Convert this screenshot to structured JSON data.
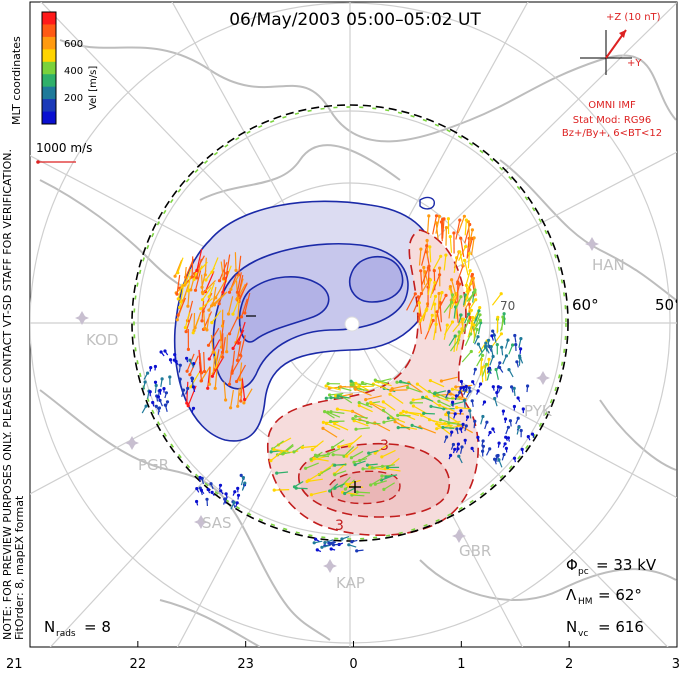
{
  "title": "06/May/2003 05:00–05:02 UT",
  "colorbar": {
    "label": "Vel [m/s]",
    "ticks": [
      "600",
      "400",
      "200"
    ],
    "colors": [
      "#ff1a1a",
      "#ff5a14",
      "#ff9a10",
      "#ffd400",
      "#7ad23c",
      "#2fb06a",
      "#1f7a9a",
      "#1b3ab8",
      "#0a10d0"
    ]
  },
  "coords_label": "MLT coordinates",
  "watermark": "NOTE: FOR PREVIEW PURPOSES ONLY. PLEASE CONTACT VT-SD STAFF FOR VERIFICATION.",
  "fit_info": "FitOrder: 8, mapEX format",
  "ref_vector": "1000 m/s",
  "imf": {
    "z_label": "+Z (10 nT)",
    "y_label": "+Y",
    "source": "OMNI IMF",
    "stat_mod": "Stat Mod: RG96",
    "condition": "Bz+/By+, 6<BT<12"
  },
  "lat_labels": [
    "60°",
    "50°",
    "70"
  ],
  "stations": [
    "HAN",
    "KOD",
    "PYK",
    "PGR",
    "SAS",
    "KAP",
    "GBR"
  ],
  "stats": {
    "phi_pc_label": "Φ",
    "phi_pc_sub": "pc",
    "phi_pc_value": "= 33 kV",
    "lambda_label": "Λ",
    "lambda_sub": "HM",
    "lambda_value": "= 62°",
    "nvc_label": "N",
    "nvc_sub": "vc",
    "nvc_value": "= 616",
    "nrads_label": "N",
    "nrads_sub": "rads",
    "nrads_value": "= 8"
  },
  "mlt_ticks": [
    "21",
    "22",
    "23",
    "0",
    "1",
    "2",
    "3"
  ],
  "contour_labels": [
    "3",
    "3"
  ]
}
